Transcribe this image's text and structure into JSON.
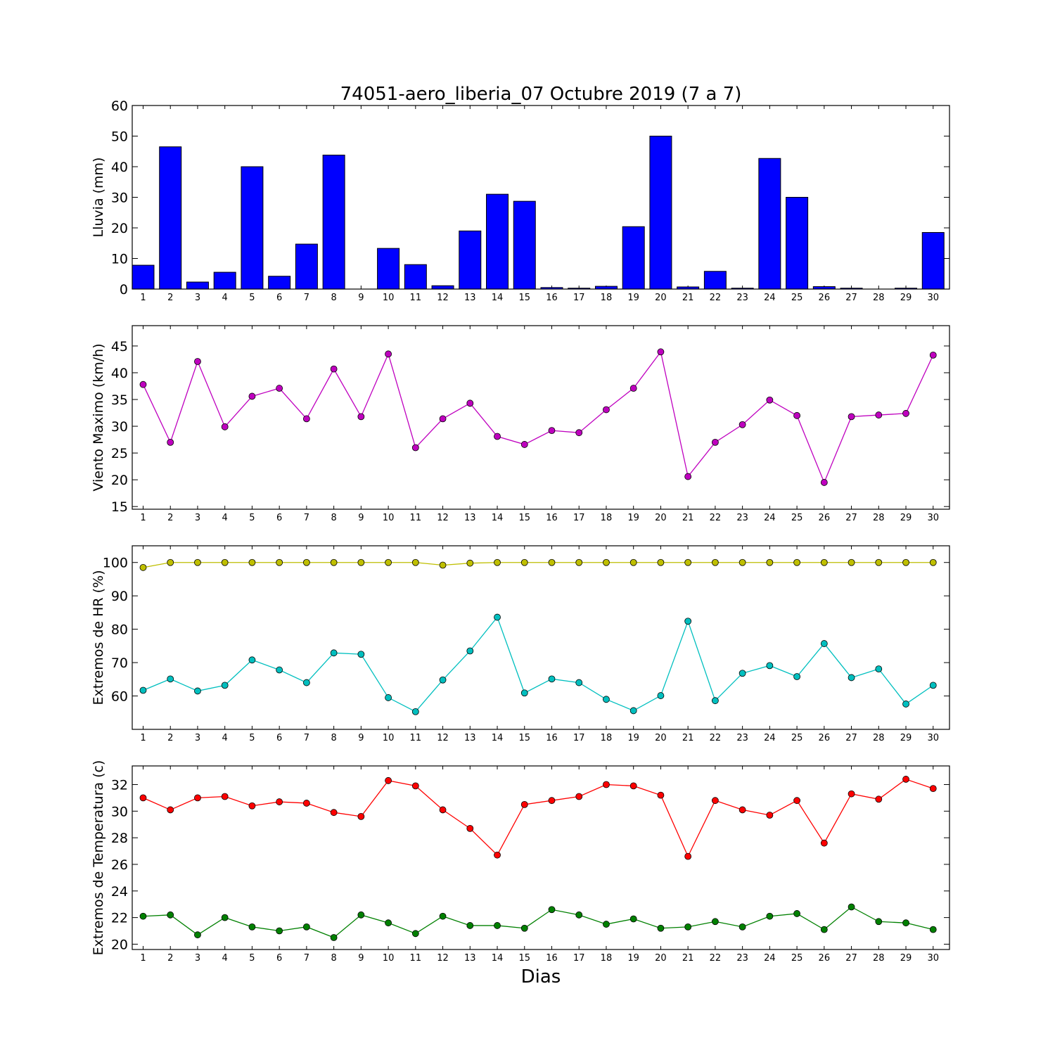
{
  "title": "74051-aero_liberia_07 Octubre 2019  (7 a 7)",
  "xlabel": "Dias",
  "chart_data": [
    {
      "type": "bar",
      "ylabel": "Lluvia (mm)",
      "ylim": [
        0,
        60
      ],
      "yticks": [
        0,
        10,
        20,
        30,
        40,
        50,
        60
      ],
      "x": [
        1,
        2,
        3,
        4,
        5,
        6,
        7,
        8,
        9,
        10,
        11,
        12,
        13,
        14,
        15,
        16,
        17,
        18,
        19,
        20,
        21,
        22,
        23,
        24,
        25,
        26,
        27,
        28,
        29,
        30
      ],
      "color": "#0000ff",
      "values": [
        7.8,
        46.5,
        2.3,
        5.5,
        40.0,
        4.2,
        14.7,
        43.8,
        0,
        13.3,
        8.0,
        1.1,
        19.0,
        31.0,
        28.7,
        0.5,
        0.3,
        0.9,
        20.4,
        50.0,
        0.7,
        5.8,
        0.3,
        42.7,
        30.0,
        0.8,
        0.3,
        0,
        0.3,
        18.5
      ]
    },
    {
      "type": "line",
      "ylabel": "Viento Maximo (km/h)",
      "ylim": [
        14.5,
        48.8
      ],
      "yticks": [
        15,
        20,
        25,
        30,
        35,
        40,
        45
      ],
      "x": [
        1,
        2,
        3,
        4,
        5,
        6,
        7,
        8,
        9,
        10,
        11,
        12,
        13,
        14,
        15,
        16,
        17,
        18,
        19,
        20,
        21,
        22,
        23,
        24,
        25,
        26,
        27,
        28,
        29,
        30
      ],
      "series": [
        {
          "color": "#bf00bf",
          "values": [
            37.8,
            27.0,
            42.1,
            29.9,
            35.6,
            37.1,
            31.4,
            40.7,
            31.8,
            43.5,
            26.0,
            31.4,
            34.3,
            28.1,
            26.6,
            29.2,
            28.8,
            33.1,
            37.1,
            43.9,
            20.6,
            27.0,
            30.3,
            34.9,
            32.0,
            19.5,
            31.8,
            32.1,
            32.4,
            43.3
          ]
        }
      ]
    },
    {
      "type": "line",
      "ylabel": "Extremos de HR (%)",
      "ylim": [
        50,
        105
      ],
      "yticks": [
        60,
        70,
        80,
        90,
        100
      ],
      "x": [
        1,
        2,
        3,
        4,
        5,
        6,
        7,
        8,
        9,
        10,
        11,
        12,
        13,
        14,
        15,
        16,
        17,
        18,
        19,
        20,
        21,
        22,
        23,
        24,
        25,
        26,
        27,
        28,
        29,
        30
      ],
      "series": [
        {
          "color": "#bfbf00",
          "values": [
            98.5,
            100,
            100,
            100,
            100,
            100,
            100,
            100,
            100,
            100,
            100,
            99.2,
            99.8,
            100,
            100,
            100,
            100,
            100,
            100,
            100,
            100,
            100,
            100,
            100,
            100,
            100,
            100,
            100,
            100,
            100
          ]
        },
        {
          "color": "#00bfbf",
          "values": [
            61.7,
            65.1,
            61.5,
            63.2,
            70.8,
            67.8,
            64.0,
            72.9,
            72.5,
            59.5,
            55.3,
            64.8,
            73.5,
            83.6,
            60.9,
            65.1,
            64.0,
            59.0,
            55.6,
            60.1,
            82.4,
            58.6,
            66.8,
            69.1,
            65.8,
            75.7,
            65.5,
            68.1,
            57.6,
            63.2
          ]
        }
      ]
    },
    {
      "type": "line",
      "ylabel": "Extremos de Temperatura (c)",
      "ylim": [
        19.6,
        33.4
      ],
      "yticks": [
        20,
        22,
        24,
        26,
        28,
        30,
        32
      ],
      "x": [
        1,
        2,
        3,
        4,
        5,
        6,
        7,
        8,
        9,
        10,
        11,
        12,
        13,
        14,
        15,
        16,
        17,
        18,
        19,
        20,
        21,
        22,
        23,
        24,
        25,
        26,
        27,
        28,
        29,
        30
      ],
      "series": [
        {
          "color": "#ff0000",
          "values": [
            31.0,
            30.1,
            31.0,
            31.1,
            30.4,
            30.7,
            30.6,
            29.9,
            29.6,
            32.3,
            31.9,
            30.1,
            28.7,
            26.7,
            30.5,
            30.8,
            31.1,
            32.0,
            31.9,
            31.2,
            26.6,
            30.8,
            30.1,
            29.7,
            30.8,
            27.6,
            31.3,
            30.9,
            32.4,
            31.7
          ]
        },
        {
          "color": "#008000",
          "values": [
            22.1,
            22.2,
            20.7,
            22.0,
            21.3,
            21.0,
            21.3,
            20.5,
            22.2,
            21.6,
            20.8,
            22.1,
            21.4,
            21.4,
            21.2,
            22.6,
            22.2,
            21.5,
            21.9,
            21.2,
            21.3,
            21.7,
            21.3,
            22.1,
            22.3,
            21.1,
            22.8,
            21.7,
            21.6,
            21.1
          ]
        }
      ]
    }
  ]
}
